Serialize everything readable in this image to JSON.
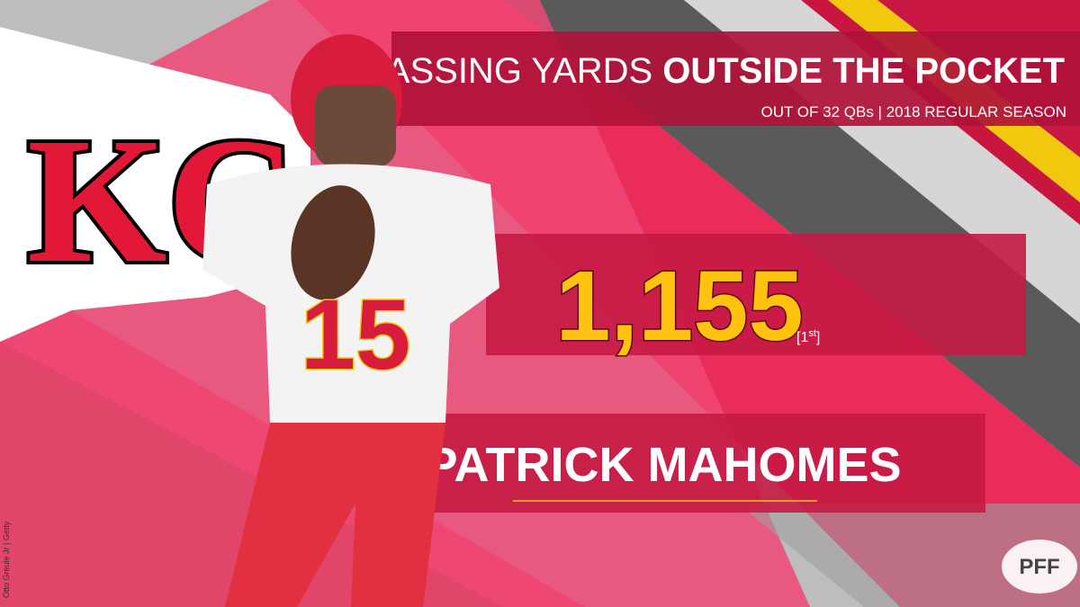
{
  "header": {
    "title_lead": "PASSING YARDS",
    "title_emphasis": "OUTSIDE THE POCKET",
    "subtitle": "OUT OF 32 QBs | 2018 REGULAR SEASON"
  },
  "stat": {
    "value": "1,155",
    "rank_open": "[",
    "rank_number": "1",
    "rank_suffix": "st",
    "rank_close": "]"
  },
  "player": {
    "name": "PATRICK MAHOMES",
    "jersey_number": "15"
  },
  "logos": {
    "team": "KC",
    "brand": "PFF"
  },
  "credit": "Otto Greule Jr | Getty"
}
